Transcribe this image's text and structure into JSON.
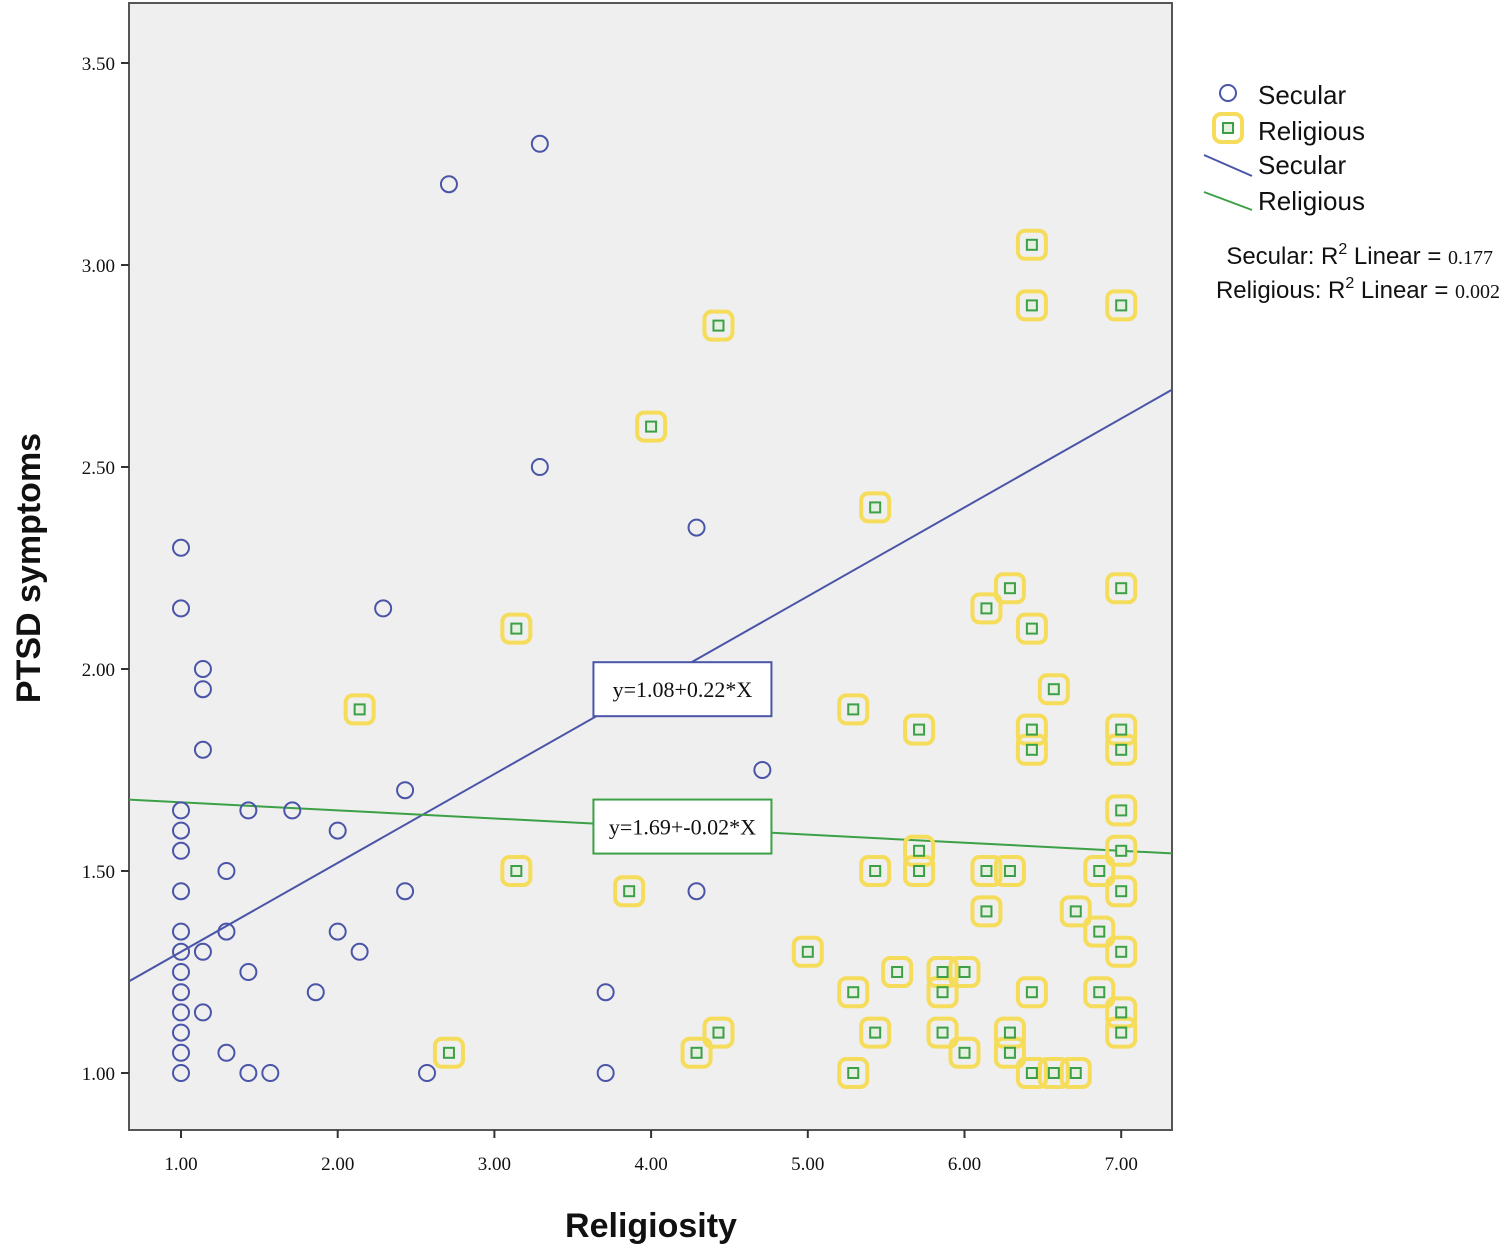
{
  "chart_data": {
    "type": "scatter",
    "title": "",
    "xlabel": "Religiosity",
    "ylabel": "PTSD symptoms",
    "xlim": [
      0.66,
      7.34
    ],
    "ylim": [
      0.88,
      3.63
    ],
    "x_ticks": [
      1,
      2,
      3,
      4,
      5,
      6,
      7
    ],
    "x_tick_labels": [
      "1.00",
      "2.00",
      "3.00",
      "4.00",
      "5.00",
      "6.00",
      "7.00"
    ],
    "y_ticks": [
      1.0,
      1.5,
      2.0,
      2.5,
      3.0,
      3.5
    ],
    "y_tick_labels": [
      "1.00",
      "1.50",
      "2.00",
      "2.50",
      "3.00",
      "3.50"
    ],
    "grid": false,
    "legend_position": "right",
    "series": [
      {
        "name": "Secular",
        "marker": "circle",
        "color": "#4a55a8",
        "points": [
          [
            1.0,
            2.3
          ],
          [
            1.0,
            2.15
          ],
          [
            1.0,
            1.65
          ],
          [
            1.0,
            1.6
          ],
          [
            1.0,
            1.55
          ],
          [
            1.0,
            1.45
          ],
          [
            1.0,
            1.35
          ],
          [
            1.0,
            1.3
          ],
          [
            1.0,
            1.25
          ],
          [
            1.0,
            1.2
          ],
          [
            1.0,
            1.15
          ],
          [
            1.0,
            1.1
          ],
          [
            1.0,
            1.05
          ],
          [
            1.0,
            1.0
          ],
          [
            1.14,
            2.0
          ],
          [
            1.14,
            1.95
          ],
          [
            1.14,
            1.8
          ],
          [
            1.14,
            1.3
          ],
          [
            1.14,
            1.15
          ],
          [
            1.29,
            1.5
          ],
          [
            1.29,
            1.35
          ],
          [
            1.29,
            1.05
          ],
          [
            1.43,
            1.65
          ],
          [
            1.43,
            1.25
          ],
          [
            1.43,
            1.0
          ],
          [
            1.57,
            1.0
          ],
          [
            1.71,
            1.65
          ],
          [
            1.86,
            1.2
          ],
          [
            2.0,
            1.6
          ],
          [
            2.0,
            1.35
          ],
          [
            2.14,
            1.3
          ],
          [
            2.29,
            2.15
          ],
          [
            2.43,
            1.7
          ],
          [
            2.43,
            1.45
          ],
          [
            2.57,
            1.0
          ],
          [
            2.71,
            3.2
          ],
          [
            3.29,
            3.3
          ],
          [
            3.29,
            2.5
          ],
          [
            3.71,
            1.2
          ],
          [
            3.71,
            1.0
          ],
          [
            4.29,
            2.35
          ],
          [
            4.29,
            1.45
          ],
          [
            4.71,
            1.75
          ]
        ]
      },
      {
        "name": "Religious",
        "marker": "square",
        "color": "#3ca046",
        "halo_color": "#f5dc5a",
        "points": [
          [
            2.14,
            1.9
          ],
          [
            2.71,
            1.05
          ],
          [
            3.14,
            2.1
          ],
          [
            3.14,
            1.5
          ],
          [
            3.86,
            1.45
          ],
          [
            4.0,
            2.6
          ],
          [
            4.29,
            1.05
          ],
          [
            4.43,
            2.85
          ],
          [
            4.43,
            1.1
          ],
          [
            5.0,
            1.3
          ],
          [
            5.29,
            1.9
          ],
          [
            5.29,
            1.2
          ],
          [
            5.29,
            1.0
          ],
          [
            5.43,
            2.4
          ],
          [
            5.43,
            1.5
          ],
          [
            5.43,
            1.1
          ],
          [
            5.57,
            1.25
          ],
          [
            5.71,
            1.85
          ],
          [
            5.71,
            1.55
          ],
          [
            5.71,
            1.5
          ],
          [
            5.86,
            1.25
          ],
          [
            5.86,
            1.2
          ],
          [
            5.86,
            1.1
          ],
          [
            6.0,
            1.25
          ],
          [
            6.0,
            1.05
          ],
          [
            6.14,
            2.15
          ],
          [
            6.14,
            1.5
          ],
          [
            6.14,
            1.4
          ],
          [
            6.29,
            2.2
          ],
          [
            6.29,
            1.5
          ],
          [
            6.29,
            1.1
          ],
          [
            6.29,
            1.05
          ],
          [
            6.43,
            3.05
          ],
          [
            6.43,
            2.9
          ],
          [
            6.43,
            2.1
          ],
          [
            6.43,
            1.85
          ],
          [
            6.43,
            1.8
          ],
          [
            6.43,
            1.2
          ],
          [
            6.43,
            1.0
          ],
          [
            6.57,
            1.95
          ],
          [
            6.57,
            1.0
          ],
          [
            6.71,
            1.4
          ],
          [
            6.71,
            1.0
          ],
          [
            6.86,
            1.5
          ],
          [
            6.86,
            1.35
          ],
          [
            6.86,
            1.2
          ],
          [
            7.0,
            2.9
          ],
          [
            7.0,
            2.2
          ],
          [
            7.0,
            1.85
          ],
          [
            7.0,
            1.8
          ],
          [
            7.0,
            1.65
          ],
          [
            7.0,
            1.55
          ],
          [
            7.0,
            1.45
          ],
          [
            7.0,
            1.3
          ],
          [
            7.0,
            1.15
          ],
          [
            7.0,
            1.1
          ]
        ]
      }
    ],
    "fit_lines": [
      {
        "name": "Secular",
        "intercept": 1.08,
        "slope": 0.22,
        "color": "#4a55a8",
        "equation_label": "y=1.08+0.22*X",
        "label_at": [
          4.2,
          1.95
        ],
        "r2": "0.177"
      },
      {
        "name": "Religious",
        "intercept": 1.69,
        "slope": -0.02,
        "color": "#3ca046",
        "equation_label": "y=1.69+-0.02*X",
        "label_at": [
          4.2,
          1.61
        ],
        "r2": "0.002"
      }
    ],
    "legend": {
      "markers": [
        "Secular",
        "Religious"
      ],
      "lines": [
        "Secular",
        "Religious"
      ]
    },
    "r2_annotations": [
      {
        "group": "Secular",
        "prefix": "Secular: R",
        "sup": "2",
        "mid": " Linear = ",
        "value": "0.177"
      },
      {
        "group": "Religious",
        "prefix": "Religious: R",
        "sup": "2",
        "mid": " Linear = ",
        "value": "0.002"
      }
    ]
  },
  "colors": {
    "plot_background": "#efefef",
    "frame": "#555555",
    "secular": "#4a55a8",
    "religious": "#3ca046",
    "halo": "#f5dc5a"
  }
}
